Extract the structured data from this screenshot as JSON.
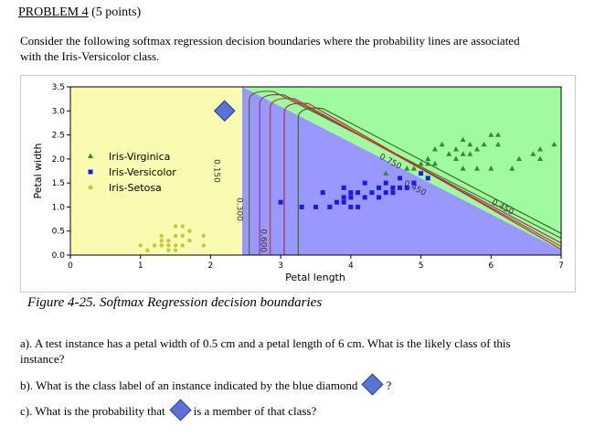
{
  "problem": {
    "title": "PROBLEM 4",
    "points": "(5 points)"
  },
  "intro": {
    "line1": "Consider the following softmax regression decision boundaries where the probability lines are associated",
    "line2": "with the Iris-Versicolor class."
  },
  "chart_data": {
    "type": "scatter",
    "title": "",
    "xlabel": "Petal length",
    "ylabel": "Petal width",
    "xlim": [
      0,
      7
    ],
    "ylim": [
      0,
      3.5
    ],
    "x_ticks": [
      "0",
      "1",
      "2",
      "3",
      "4",
      "5",
      "6",
      "7"
    ],
    "y_ticks": [
      "0.0",
      "0.5",
      "1.0",
      "1.5",
      "2.0",
      "2.5",
      "3.0",
      "3.5"
    ],
    "legend_position": "center-left",
    "regions": [
      {
        "class": "Iris-Setosa",
        "color": "#fafab0"
      },
      {
        "class": "Iris-Versicolor",
        "color": "#9898ff"
      },
      {
        "class": "Iris-Virginica",
        "color": "#a0faa0"
      }
    ],
    "contour_labels": [
      "0.150",
      "0.300",
      "0.600",
      "0.750",
      "0.450",
      "0.450"
    ],
    "series": [
      {
        "name": "Iris-Virginica",
        "marker": "triangle",
        "color": "#2f8c2f",
        "points": [
          [
            4.5,
            1.7
          ],
          [
            4.8,
            1.8
          ],
          [
            4.9,
            1.8
          ],
          [
            5.0,
            1.9
          ],
          [
            5.1,
            2.0
          ],
          [
            5.1,
            1.9
          ],
          [
            5.2,
            2.2
          ],
          [
            5.2,
            1.9
          ],
          [
            5.3,
            2.3
          ],
          [
            5.4,
            2.1
          ],
          [
            5.5,
            2.0
          ],
          [
            5.5,
            2.2
          ],
          [
            5.6,
            2.1
          ],
          [
            5.6,
            2.4
          ],
          [
            5.6,
            1.8
          ],
          [
            5.7,
            2.1
          ],
          [
            5.7,
            2.3
          ],
          [
            5.8,
            1.8
          ],
          [
            5.8,
            2.2
          ],
          [
            5.9,
            2.3
          ],
          [
            6.0,
            2.5
          ],
          [
            6.0,
            1.8
          ],
          [
            6.1,
            2.3
          ],
          [
            6.1,
            2.5
          ],
          [
            6.3,
            1.8
          ],
          [
            6.4,
            2.0
          ],
          [
            6.6,
            2.1
          ],
          [
            6.7,
            2.2
          ],
          [
            6.7,
            2.0
          ],
          [
            6.9,
            2.3
          ]
        ]
      },
      {
        "name": "Iris-Versicolor",
        "marker": "square",
        "color": "#1a1ae6",
        "points": [
          [
            3.0,
            1.1
          ],
          [
            3.3,
            1.0
          ],
          [
            3.5,
            1.0
          ],
          [
            3.6,
            1.3
          ],
          [
            3.7,
            1.0
          ],
          [
            3.8,
            1.1
          ],
          [
            3.9,
            1.1
          ],
          [
            3.9,
            1.2
          ],
          [
            3.9,
            1.4
          ],
          [
            4.0,
            1.0
          ],
          [
            4.0,
            1.2
          ],
          [
            4.0,
            1.3
          ],
          [
            4.1,
            1.0
          ],
          [
            4.1,
            1.3
          ],
          [
            4.2,
            1.2
          ],
          [
            4.2,
            1.5
          ],
          [
            4.3,
            1.3
          ],
          [
            4.4,
            1.2
          ],
          [
            4.4,
            1.4
          ],
          [
            4.5,
            1.3
          ],
          [
            4.5,
            1.5
          ],
          [
            4.6,
            1.4
          ],
          [
            4.6,
            1.3
          ],
          [
            4.7,
            1.4
          ],
          [
            4.7,
            1.6
          ],
          [
            4.8,
            1.4
          ],
          [
            4.9,
            1.5
          ],
          [
            5.0,
            1.7
          ],
          [
            5.1,
            1.6
          ]
        ]
      },
      {
        "name": "Iris-Setosa",
        "marker": "circle",
        "color": "#c8c83a",
        "points": [
          [
            1.0,
            0.2
          ],
          [
            1.1,
            0.1
          ],
          [
            1.2,
            0.2
          ],
          [
            1.3,
            0.2
          ],
          [
            1.3,
            0.3
          ],
          [
            1.3,
            0.4
          ],
          [
            1.4,
            0.1
          ],
          [
            1.4,
            0.2
          ],
          [
            1.4,
            0.3
          ],
          [
            1.5,
            0.1
          ],
          [
            1.5,
            0.2
          ],
          [
            1.5,
            0.4
          ],
          [
            1.5,
            0.6
          ],
          [
            1.6,
            0.2
          ],
          [
            1.6,
            0.4
          ],
          [
            1.6,
            0.6
          ],
          [
            1.7,
            0.3
          ],
          [
            1.7,
            0.5
          ],
          [
            1.9,
            0.2
          ],
          [
            1.9,
            0.4
          ]
        ]
      },
      {
        "name": "",
        "marker": "diamond",
        "color": "#5b73d6",
        "points": [
          [
            2.2,
            3.0
          ]
        ]
      }
    ]
  },
  "caption": "Figure 4-25. Softmax Regression decision boundaries",
  "questions": {
    "a": "a). A test instance has a petal width of 0.5 cm and a petal length of 6 cm. What is the likely class of this",
    "a2": "instance?",
    "b": "b). What is the class label of an instance indicated by the blue diamond",
    "b_end": "?",
    "c": "c). What is the probability that",
    "c_end": "is a member of that class?"
  }
}
